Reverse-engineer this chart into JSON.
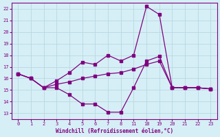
{
  "bg_color": "#d6eff6",
  "grid_color": "#b8d8e0",
  "line_color": "#800080",
  "marker_color": "#800080",
  "xlabel": "Windchill (Refroidissement éolien,°C)",
  "xlabel_color": "#800080",
  "tick_labels": [
    "0",
    "1",
    "2",
    "3",
    "4",
    "5",
    "6",
    "7",
    "8",
    "11",
    "18",
    "19",
    "20",
    "21",
    "22",
    "23"
  ],
  "yticks": [
    13,
    14,
    15,
    16,
    17,
    18,
    19,
    20,
    21,
    22
  ],
  "ylim": [
    12.5,
    22.5
  ],
  "xlim": [
    -0.5,
    15.5
  ],
  "series1_x": [
    0,
    1,
    2,
    3,
    4,
    5,
    6,
    7,
    8,
    9,
    10,
    11,
    12,
    13,
    14,
    15
  ],
  "series1_y": [
    16.4,
    16.0,
    15.2,
    15.2,
    14.6,
    13.8,
    13.8,
    13.1,
    13.1,
    15.2,
    17.5,
    17.9,
    15.2,
    15.2,
    15.2,
    15.1
  ],
  "series2_x": [
    0,
    1,
    2,
    3,
    4,
    5,
    6,
    7,
    8,
    9,
    10,
    11,
    12,
    13,
    14,
    15
  ],
  "series2_y": [
    16.4,
    16.0,
    15.2,
    15.8,
    16.5,
    17.4,
    17.2,
    18.0,
    17.5,
    18.0,
    22.2,
    21.5,
    15.2,
    15.2,
    15.2,
    15.1
  ],
  "series3_x": [
    0,
    1,
    2,
    3,
    4,
    5,
    6,
    7,
    8,
    9,
    10,
    11,
    12,
    13,
    14,
    15
  ],
  "series3_y": [
    16.4,
    16.0,
    15.2,
    15.5,
    15.7,
    16.0,
    16.2,
    16.4,
    16.5,
    16.8,
    17.2,
    17.5,
    15.2,
    15.2,
    15.2,
    15.1
  ],
  "marker_size": 2.5,
  "line_width": 0.9
}
